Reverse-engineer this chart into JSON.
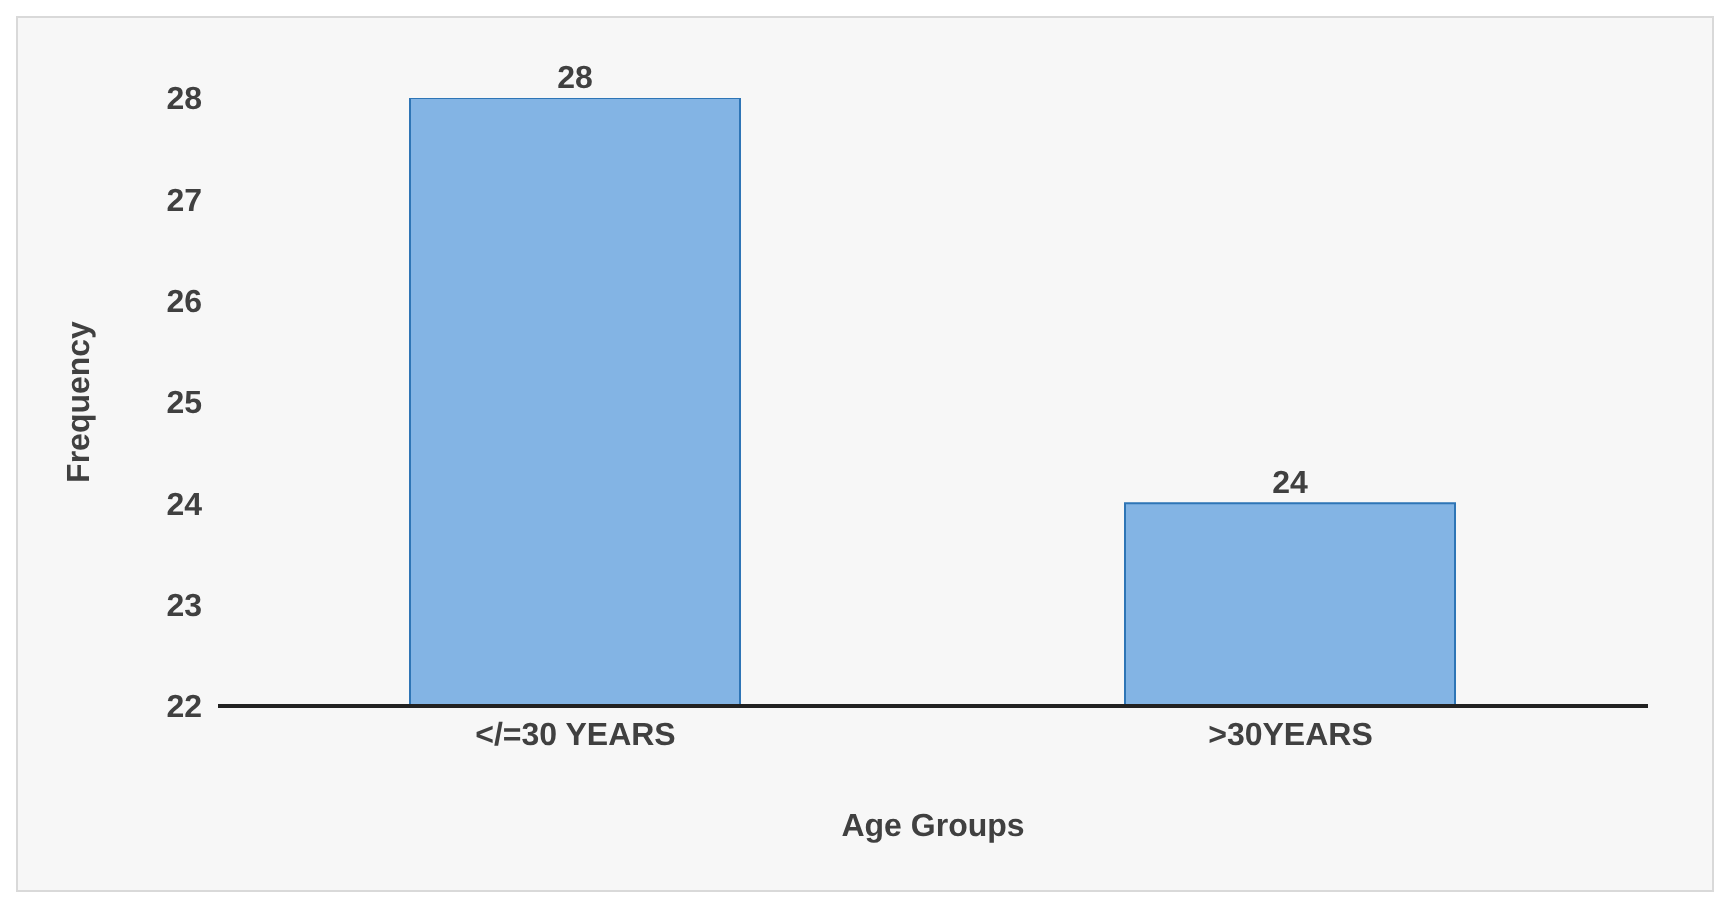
{
  "chart_data": {
    "type": "bar",
    "xlabel": "Age Groups",
    "ylabel": "Frequency",
    "categories": [
      "</=30 YEARS",
      ">30YEARS"
    ],
    "values": [
      28,
      24
    ],
    "color": "#6fa8e0",
    "ylim": [
      22,
      28
    ],
    "yticks": [
      22,
      23,
      24,
      25,
      26,
      27,
      28
    ],
    "data_labels": true
  }
}
